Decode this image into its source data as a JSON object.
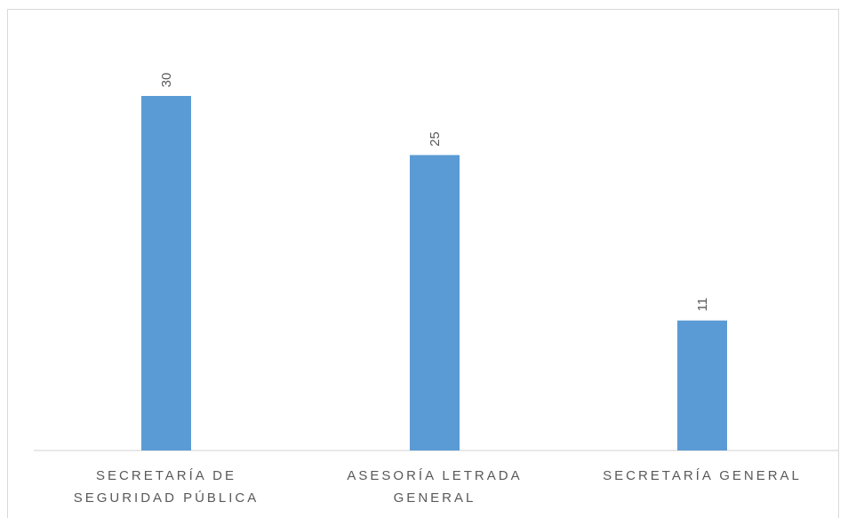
{
  "chart_data": {
    "type": "bar",
    "categories": [
      [
        "SECRETARÍA DE",
        "SEGURIDAD PÚBLICA"
      ],
      [
        "ASESORÍA LETRADA",
        "GENERAL"
      ],
      [
        "SECRETARÍA GENERAL"
      ]
    ],
    "values": [
      30,
      25,
      11
    ],
    "value_labels": [
      "30",
      "25",
      "11"
    ],
    "ylim": [
      0,
      30
    ],
    "grid": false,
    "legend": "none",
    "bar_color": "#5b9bd5",
    "axis_color": "#d9d9d9",
    "label_color": "#595959"
  }
}
